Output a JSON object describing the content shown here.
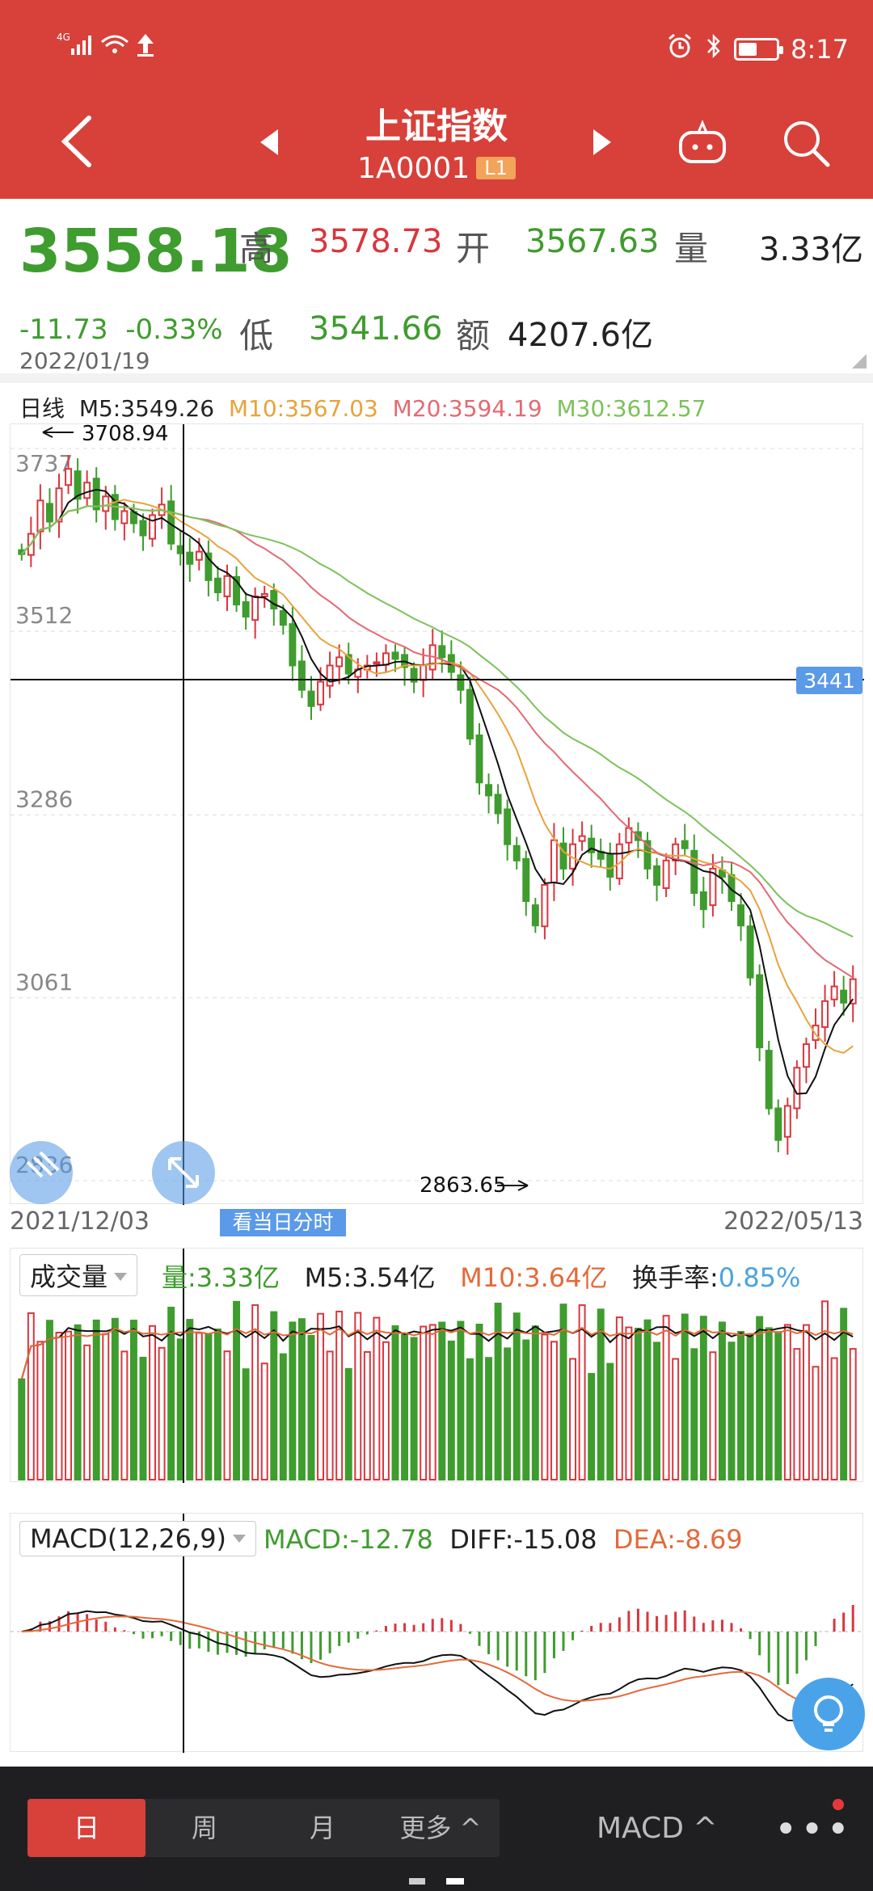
{
  "status_bar": {
    "network": "4G",
    "time": "8:17"
  },
  "header": {
    "title": "上证指数",
    "code": "1A0001",
    "badge": "L1"
  },
  "quote": {
    "price": "3558.18",
    "change": "-11.73",
    "change_pct": "-0.33%",
    "date": "2022/01/19",
    "high_label": "高",
    "high": "3578.73",
    "open_label": "开",
    "open": "3567.63",
    "vol_label": "量",
    "vol": "3.33亿",
    "low_label": "低",
    "low": "3541.66",
    "amt_label": "额",
    "amt": "4207.6亿"
  },
  "ma_legend": {
    "period": "日线",
    "m5": "M5:3549.26",
    "m10": "M10:3567.03",
    "m20": "M20:3594.19",
    "m30": "M30:3612.57"
  },
  "price_axis": [
    "3737",
    "3512",
    "3286",
    "3061",
    "2836"
  ],
  "annotations": {
    "high": "3708.94",
    "low": "2863.65",
    "crosshair_value": "3441"
  },
  "date_axis": {
    "start": "2021/12/03",
    "end": "2022/05/13",
    "today_button": "看当日分时"
  },
  "volume_panel": {
    "selector": "成交量",
    "vol": "量:3.33亿",
    "m5": "M5:3.54亿",
    "m10": "M10:3.64亿",
    "turnover_label": "换手率:",
    "turnover_value": "0.85%"
  },
  "macd_panel": {
    "selector": "MACD(12,26,9)",
    "macd": "MACD:-12.78",
    "diff": "DIFF:-15.08",
    "dea": "DEA:-8.69"
  },
  "bottom_bar": {
    "tabs": [
      "日",
      "周",
      "月",
      "更多 ^"
    ],
    "indicator": "MACD ^",
    "more": "•••"
  },
  "colors": {
    "up": "#d9363e",
    "down": "#3f9c2e",
    "brand": "#d8403a",
    "m10": "#e8a33a",
    "m20": "#e36a73",
    "m30": "#7cc25a"
  },
  "chart_data": {
    "type": "candlestick",
    "ylim": [
      2836,
      3737
    ],
    "yticks": [
      3737,
      3512,
      3286,
      3061,
      2836
    ],
    "x_start": "2021/12/03",
    "x_end": "2022/05/13",
    "closes": [
      3607,
      3632,
      3673,
      3647,
      3688,
      3712,
      3675,
      3695,
      3662,
      3678,
      3650,
      3660,
      3645,
      3630,
      3655,
      3668,
      3620,
      3608,
      3595,
      3610,
      3575,
      3560,
      3580,
      3545,
      3530,
      3555,
      3558,
      3540,
      3520,
      3470,
      3440,
      3420,
      3450,
      3470,
      3480,
      3460,
      3465,
      3470,
      3474,
      3485,
      3478,
      3468,
      3450,
      3470,
      3495,
      3480,
      3462,
      3440,
      3380,
      3326,
      3310,
      3288,
      3250,
      3230,
      3180,
      3150,
      3200,
      3255,
      3220,
      3250,
      3260,
      3240,
      3232,
      3210,
      3250,
      3270,
      3255,
      3220,
      3200,
      3230,
      3250,
      3245,
      3190,
      3170,
      3220,
      3210,
      3180,
      3150,
      3086,
      3000,
      2925,
      2886,
      2928,
      2975,
      3004,
      3027,
      3057,
      3075,
      3055,
      3084
    ]
  }
}
